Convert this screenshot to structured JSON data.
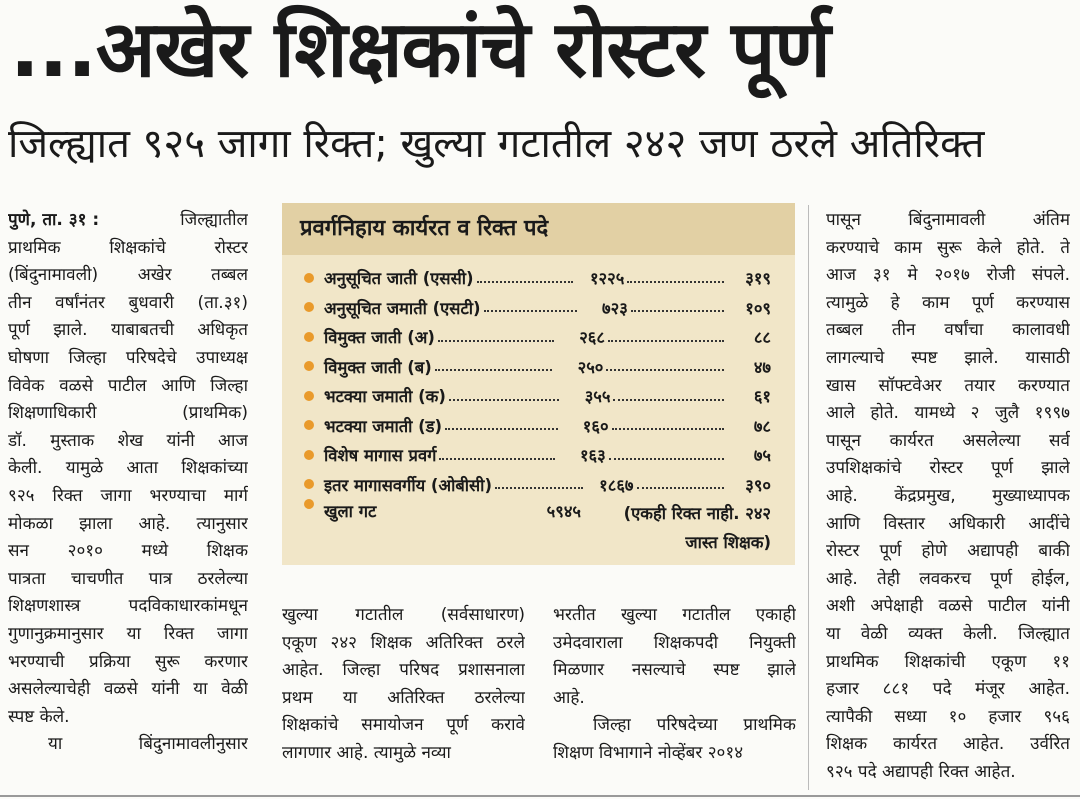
{
  "headline": "...अखेर शिक्षकांचे रोस्टर पूर्ण",
  "subheadline": "जिल्ह्यात ९२५ जागा रिक्त; खुल्या गटातील २४२ जण ठरले अतिरिक्त",
  "column1": {
    "dateline": "पुणे, ता. ३१ :",
    "paragraphs": [
      [
        "जिल्ह्यातील",
        "प्राथमिक शिक्षकांचे रोस्टर",
        "(बिंदुनामावली) अखेर तब्बल",
        "तीन वर्षांनंतर बुधवारी (ता.३१)",
        "पूर्ण झाले. याबाबतची अधिकृत",
        "घोषणा जिल्हा परिषदेचे उपाध्यक्ष",
        "विवेक वळसे पाटील आणि जिल्हा",
        "शिक्षणाधिकारी (प्राथमिक)",
        "डॉ. मुस्ताक शेख यांनी आज",
        "केली. यामुळे आता शिक्षकांच्या",
        "९२५ रिक्त जागा भरण्याचा मार्ग",
        "मोकळा झाला आहे. त्यानुसार",
        "सन २०१० मध्ये शिक्षक",
        "पात्रता चाचणीत पात्र ठरलेल्या",
        "शिक्षणशास्त्र पदविकाधारकांमधून",
        "गुणानुक्रमानुसार या रिक्त जागा",
        "भरण्याची प्रक्रिया सुरू करणार",
        "असलेल्याचेही वळसे यांनी या वेळी",
        "स्पष्ट केले."
      ],
      [
        "या बिंदुनामावलीनुसार"
      ]
    ]
  },
  "column2": {
    "paragraphs": [
      [
        "खुल्या गटातील (सर्वसाधारण)",
        "एकूण २४२ शिक्षक अतिरिक्त ठरले",
        "आहेत. जिल्हा परिषद प्रशासनाला",
        "प्रथम या अतिरिक्त ठरलेल्या",
        "शिक्षकांचे समायोजन पूर्ण करावे",
        "लागणार आहे. त्यामुळे नव्या"
      ]
    ]
  },
  "column3": {
    "paragraphs": [
      [
        "भरतीत खुल्या गटातील एकाही",
        "उमेदवाराला शिक्षकपदी नियुक्ती",
        "मिळणार नसल्याचे स्पष्ट झाले",
        "आहे."
      ],
      [
        "जिल्हा परिषदेच्या प्राथमिक",
        "शिक्षण विभागाने नोव्हेंबर २०१४"
      ]
    ]
  },
  "column4": {
    "paragraphs": [
      [
        "पासून बिंदुनामावली अंतिम",
        "करण्याचे काम सुरू केले होते. ते",
        "आज ३१ मे २०१७ रोजी संपले.",
        "त्यामुळे हे काम पूर्ण करण्यास",
        "तब्बल तीन वर्षांचा कालावधी",
        "लागल्याचे स्पष्ट झाले. यासाठी",
        "खास सॉफ्टवेअर तयार करण्यात",
        "आले होते. यामध्ये २ जुलै १९९७",
        "पासून कार्यरत असलेल्या सर्व",
        "उपशिक्षकांचे रोस्टर पूर्ण झाले",
        "आहे. केंद्रप्रमुख, मुख्याध्यापक",
        "आणि विस्तार अधिकारी आदींचे",
        "रोस्टर पूर्ण होणे अद्यापही बाकी",
        "आहे. तेही लवकरच पूर्ण होईल,",
        "अशी अपेक्षाही वळसे पाटील यांनी",
        "या वेळी व्यक्त केली. जिल्ह्यात",
        "प्राथमिक शिक्षकांची एकूण ११",
        "हजार ८८१ पदे मंजूर आहेत.",
        "त्यापैकी सध्या १० हजार ९५६",
        "शिक्षक कार्यरत आहेत. उर्वरित",
        "९२५ पदे अद्यापही रिक्त आहेत."
      ]
    ]
  },
  "box": {
    "title": "प्रवर्गनिहाय कार्यरत व रिक्त पदे",
    "rows": [
      {
        "category": "अनुसूचित जाती (एससी)",
        "working": "१२२५",
        "vacant": "३१९"
      },
      {
        "category": "अनुसूचित जमाती (एसटी)",
        "working": "७२३",
        "vacant": "१०९"
      },
      {
        "category": "विमुक्त जाती (अ)",
        "working": "२६८",
        "vacant": "८८"
      },
      {
        "category": "विमुक्त जाती (ब)",
        "working": "२५०",
        "vacant": "४७"
      },
      {
        "category": "भटक्या जमाती (क)",
        "working": "३५५",
        "vacant": "६१"
      },
      {
        "category": "भटक्या जमाती (ड)",
        "working": "१६०",
        "vacant": "७८"
      },
      {
        "category": "विशेष मागास प्रवर्ग",
        "working": "१६३",
        "vacant": "७५"
      },
      {
        "category": "इतर मागासवर्गीय (ओबीसी)",
        "working": "१८६७",
        "vacant": "३९०"
      },
      {
        "category": "खुला गट",
        "working": "५९४५",
        "note": "(एकही रिक्त नाही. २४२ जास्त शिक्षक)"
      }
    ]
  }
}
